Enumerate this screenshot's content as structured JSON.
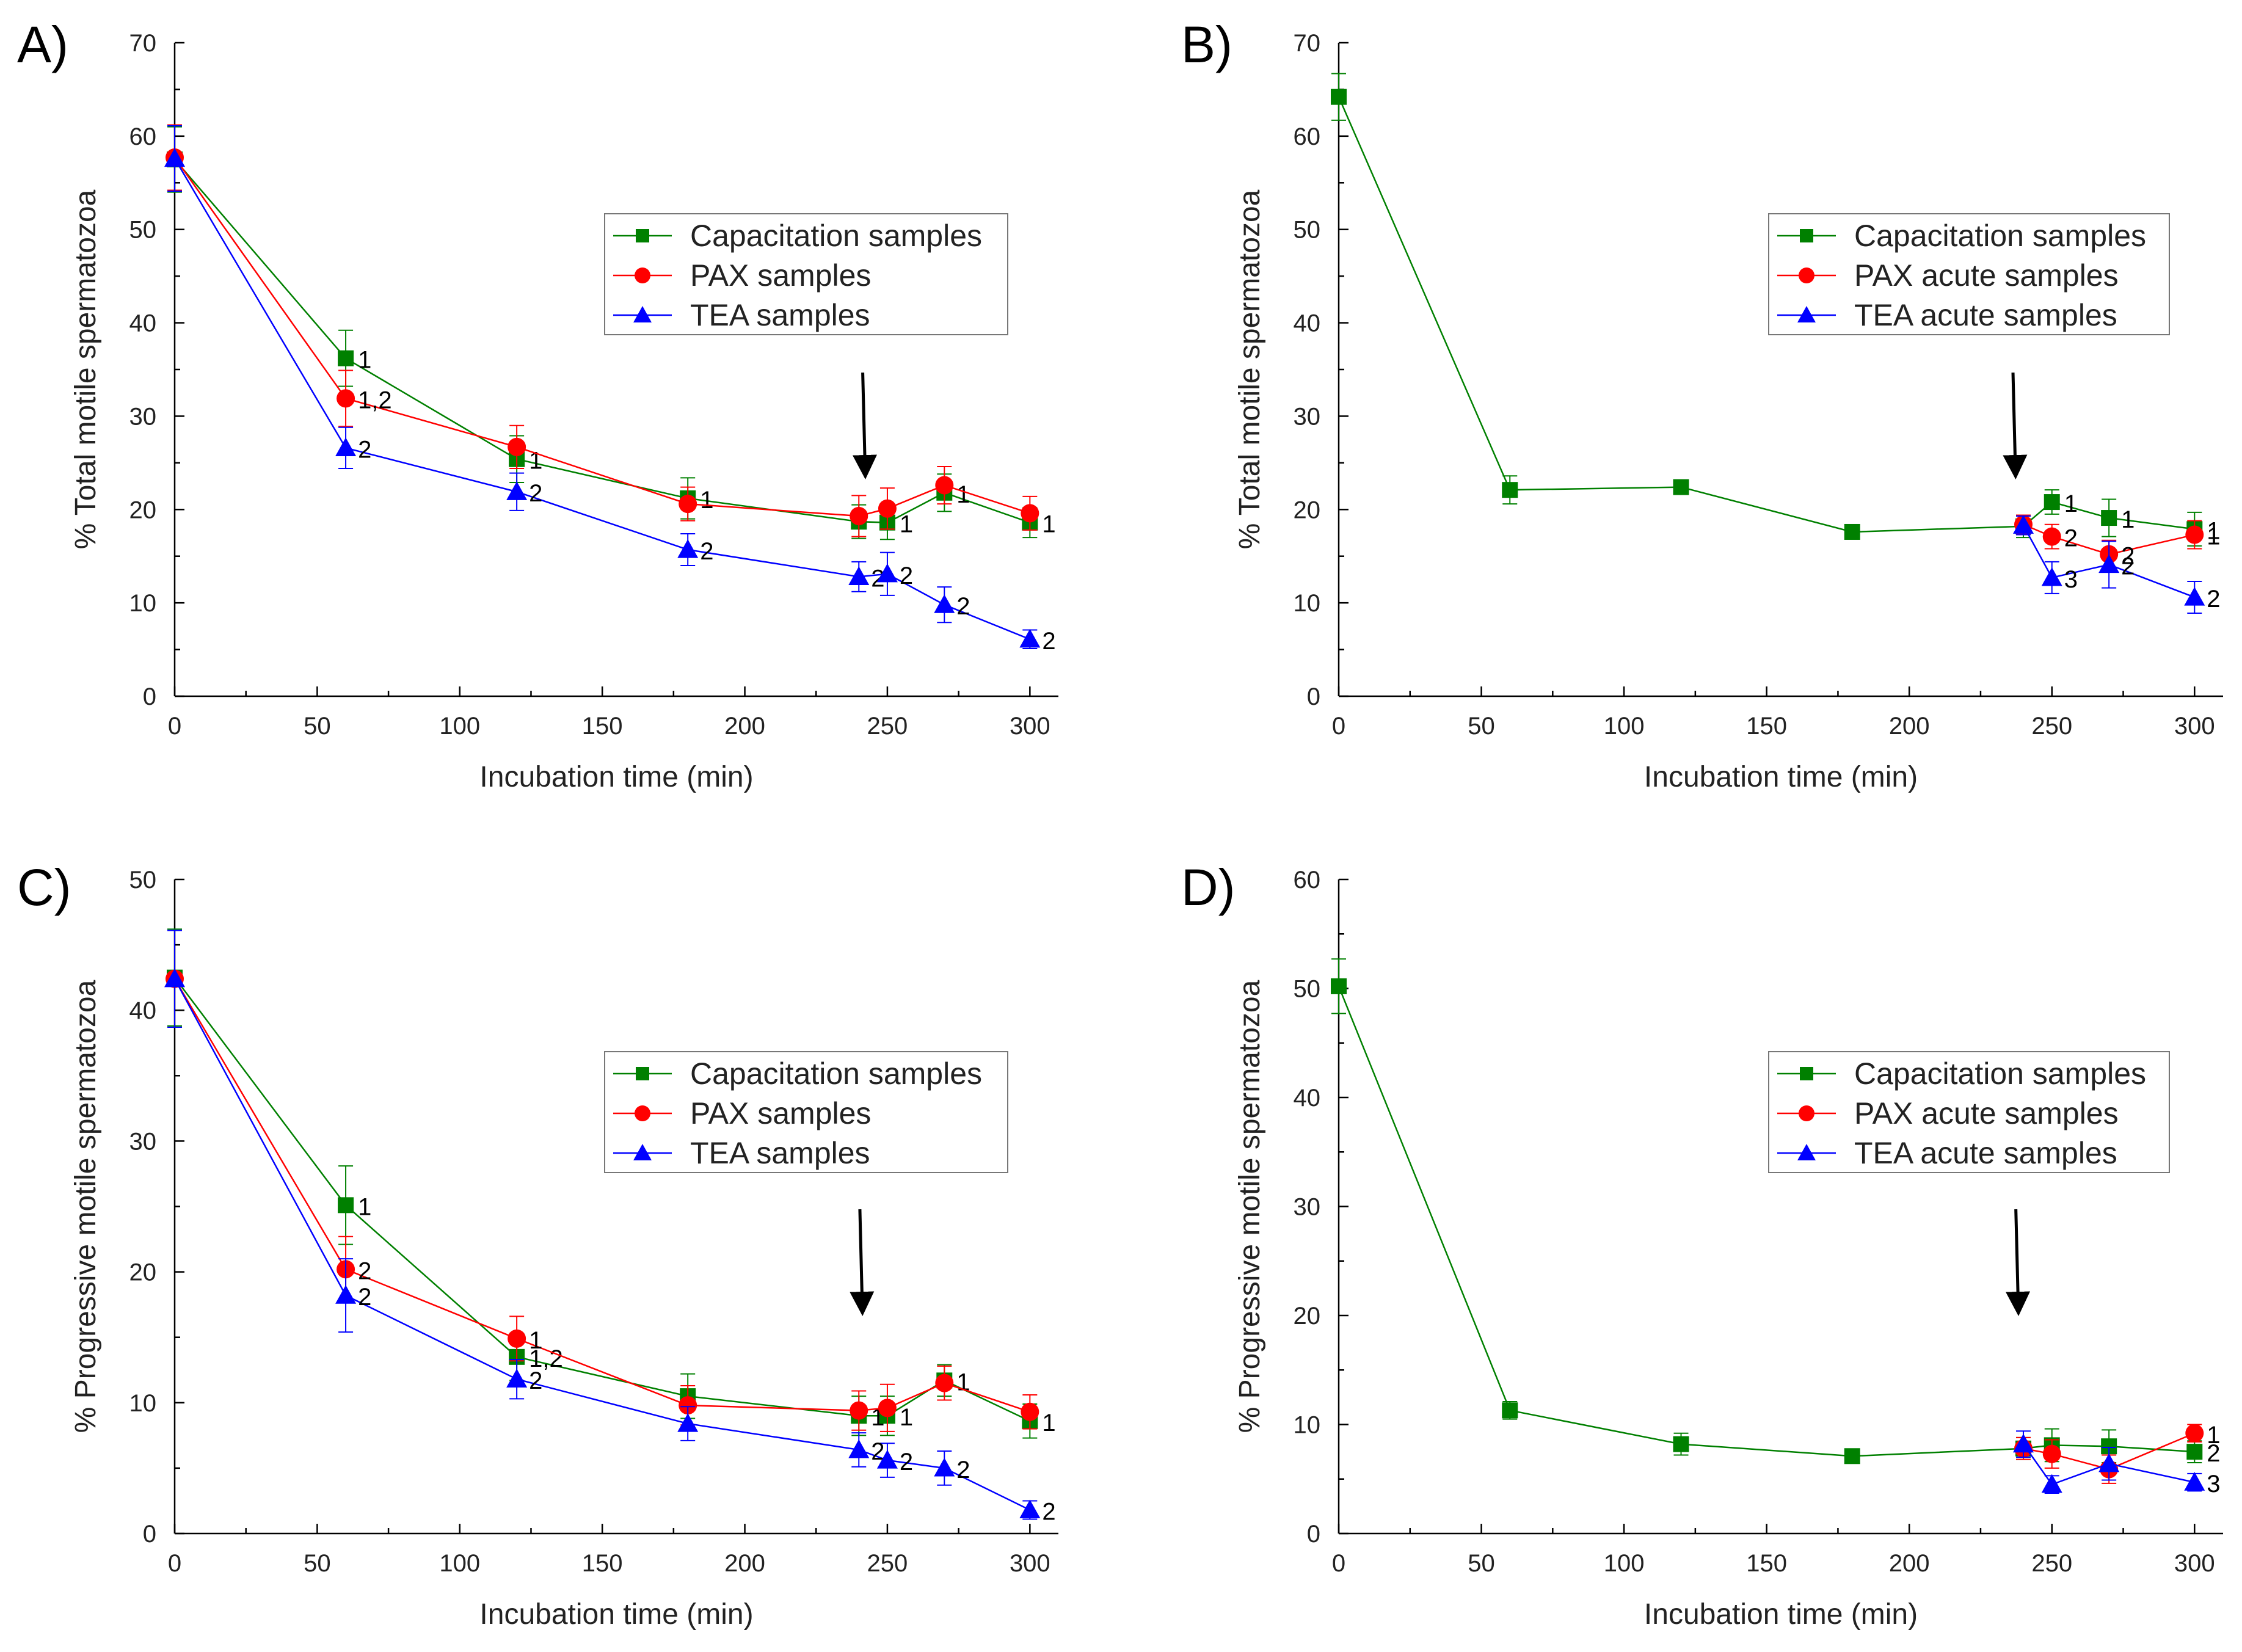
{
  "colors": {
    "capacitation": "#008000",
    "pax": "#ff0000",
    "tea": "#0000ff"
  },
  "chart_data": [
    {
      "panel": "A)",
      "type": "line",
      "xlabel": "Incubation time (min)",
      "ylabel": "% Total motile spermatozoa",
      "xlim": [
        0,
        310
      ],
      "ylim": [
        0,
        70
      ],
      "xticks": [
        0,
        50,
        100,
        150,
        200,
        250,
        300
      ],
      "yticks": [
        0,
        10,
        20,
        30,
        40,
        50,
        60,
        70
      ],
      "arrow_x": 242,
      "series": [
        {
          "name": "Capacitation samples",
          "key": "capacitation",
          "marker": "square",
          "x": [
            0,
            60,
            120,
            180,
            240,
            250,
            270,
            300
          ],
          "y": [
            57.5,
            36.2,
            25.4,
            21.2,
            18.7,
            18.6,
            21.8,
            18.6
          ],
          "err": [
            3.5,
            3,
            2.5,
            2.2,
            1.8,
            1.8,
            2,
            1.6
          ],
          "labels": [
            "",
            "1",
            "1",
            "1",
            "",
            "1",
            "1",
            "1"
          ]
        },
        {
          "name": "PAX samples",
          "key": "pax",
          "marker": "circle",
          "x": [
            0,
            60,
            120,
            180,
            240,
            250,
            270,
            300
          ],
          "y": [
            57.7,
            31.9,
            26.7,
            20.6,
            19.3,
            20.1,
            22.6,
            19.6
          ],
          "err": [
            3.5,
            3,
            2.3,
            1.8,
            2.2,
            2.2,
            2,
            1.8
          ],
          "labels": [
            "",
            "1,2",
            "",
            "",
            "",
            "",
            "",
            ""
          ]
        },
        {
          "name": "TEA samples",
          "key": "tea",
          "marker": "triangle",
          "x": [
            0,
            60,
            120,
            180,
            240,
            250,
            270,
            300
          ],
          "y": [
            57.6,
            26.6,
            21.9,
            15.7,
            12.8,
            13.1,
            9.8,
            6.1
          ],
          "err": [
            3.5,
            2.2,
            2,
            1.7,
            1.6,
            2.3,
            1.9,
            1
          ],
          "labels": [
            "",
            "2",
            "2",
            "2",
            "2",
            "2",
            "2",
            "2"
          ]
        }
      ]
    },
    {
      "panel": "B)",
      "type": "line",
      "xlabel": "Incubation time (min)",
      "ylabel": "% Total motile spermatozoa",
      "xlim": [
        0,
        310
      ],
      "ylim": [
        0,
        70
      ],
      "xticks": [
        0,
        50,
        100,
        150,
        200,
        250,
        300
      ],
      "yticks": [
        0,
        10,
        20,
        30,
        40,
        50,
        60,
        70
      ],
      "arrow_x": 237,
      "series": [
        {
          "name": "Capacitation samples",
          "key": "capacitation",
          "marker": "square",
          "x": [
            0,
            60,
            120,
            180,
            240,
            250,
            270,
            300
          ],
          "y": [
            64.2,
            22.1,
            22.4,
            17.6,
            18.2,
            20.8,
            19.1,
            17.9
          ],
          "err": [
            2.5,
            1.5,
            0.7,
            0.7,
            1.2,
            1.3,
            2,
            1.8
          ],
          "labels": [
            "",
            "",
            "",
            "",
            "",
            "1",
            "1",
            "1"
          ]
        },
        {
          "name": "PAX acute samples",
          "key": "pax",
          "marker": "circle",
          "x": [
            240,
            250,
            270,
            300
          ],
          "y": [
            18.4,
            17.1,
            15.2,
            17.3
          ],
          "err": [
            1,
            1.3,
            1.5,
            1.5
          ],
          "labels": [
            "",
            "2",
            "2",
            "1"
          ]
        },
        {
          "name": "TEA acute samples",
          "key": "tea",
          "marker": "triangle",
          "x": [
            240,
            250,
            270,
            300
          ],
          "y": [
            18.3,
            12.7,
            14.1,
            10.6
          ],
          "err": [
            1,
            1.7,
            2.5,
            1.7
          ],
          "labels": [
            "",
            "3",
            "2",
            "2"
          ]
        }
      ]
    },
    {
      "panel": "C)",
      "type": "line",
      "xlabel": "Incubation time (min)",
      "ylabel": "% Progressive motile spermatozoa",
      "xlim": [
        0,
        310
      ],
      "ylim": [
        0,
        50
      ],
      "xticks": [
        0,
        50,
        100,
        150,
        200,
        250,
        300
      ],
      "yticks": [
        0,
        10,
        20,
        30,
        40,
        50
      ],
      "arrow_x": 241,
      "series": [
        {
          "name": "Capacitation samples",
          "key": "capacitation",
          "marker": "square",
          "x": [
            0,
            60,
            120,
            180,
            240,
            250,
            270,
            300
          ],
          "y": [
            42.5,
            25.1,
            13.5,
            10.5,
            9,
            9,
            11.7,
            8.6
          ],
          "err": [
            3.7,
            3,
            1.8,
            1.7,
            1.5,
            1.5,
            1.2,
            1.3
          ],
          "labels": [
            "",
            "1",
            "1,2",
            "",
            "1",
            "1",
            "1",
            "1"
          ]
        },
        {
          "name": "PAX samples",
          "key": "pax",
          "marker": "circle",
          "x": [
            0,
            60,
            120,
            180,
            240,
            250,
            270,
            300
          ],
          "y": [
            42.4,
            20.2,
            14.9,
            9.8,
            9.4,
            9.6,
            11.5,
            9.3
          ],
          "err": [
            3.7,
            2.5,
            1.7,
            1.5,
            1.5,
            1.8,
            1.3,
            1.3
          ],
          "labels": [
            "",
            "2",
            "1",
            "",
            "",
            "",
            "",
            ""
          ]
        },
        {
          "name": "TEA samples",
          "key": "tea",
          "marker": "triangle",
          "x": [
            0,
            60,
            120,
            180,
            240,
            250,
            270,
            300
          ],
          "y": [
            42.4,
            18.2,
            11.8,
            8.4,
            6.4,
            5.6,
            5,
            1.8
          ],
          "err": [
            3.7,
            2.8,
            1.5,
            1.3,
            1.3,
            1.3,
            1.3,
            0.7
          ],
          "labels": [
            "",
            "2",
            "2",
            "",
            "2",
            "2",
            "2",
            "2"
          ]
        }
      ]
    },
    {
      "panel": "D)",
      "type": "line",
      "xlabel": "Incubation time (min)",
      "ylabel": "% Progressive motile spermatozoa",
      "xlim": [
        0,
        310
      ],
      "ylim": [
        0,
        60
      ],
      "xticks": [
        0,
        50,
        100,
        150,
        200,
        250,
        300
      ],
      "yticks": [
        0,
        10,
        20,
        30,
        40,
        50,
        60
      ],
      "arrow_x": 238,
      "series": [
        {
          "name": "Capacitation samples",
          "key": "capacitation",
          "marker": "square",
          "x": [
            0,
            60,
            120,
            180,
            240,
            250,
            270,
            300
          ],
          "y": [
            50.2,
            11.3,
            8.2,
            7.1,
            7.8,
            8.1,
            8,
            7.5
          ],
          "err": [
            2.5,
            0.8,
            1,
            0.5,
            1,
            1.5,
            1.5,
            1
          ],
          "labels": [
            "",
            "",
            "",
            "",
            "",
            "",
            "",
            "2"
          ]
        },
        {
          "name": "PAX acute samples",
          "key": "pax",
          "marker": "circle",
          "x": [
            240,
            250,
            270,
            300
          ],
          "y": [
            7.8,
            7.3,
            5.9,
            9.2
          ],
          "err": [
            1,
            1.3,
            1.3,
            0.8
          ],
          "labels": [
            "",
            "",
            "",
            "1"
          ]
        },
        {
          "name": "TEA acute samples",
          "key": "tea",
          "marker": "triangle",
          "x": [
            240,
            250,
            270,
            300
          ],
          "y": [
            8.2,
            4.5,
            6.4,
            4.7
          ],
          "err": [
            1.2,
            0.8,
            1.5,
            0.8
          ],
          "labels": [
            "",
            "",
            "",
            "3"
          ]
        }
      ]
    }
  ]
}
